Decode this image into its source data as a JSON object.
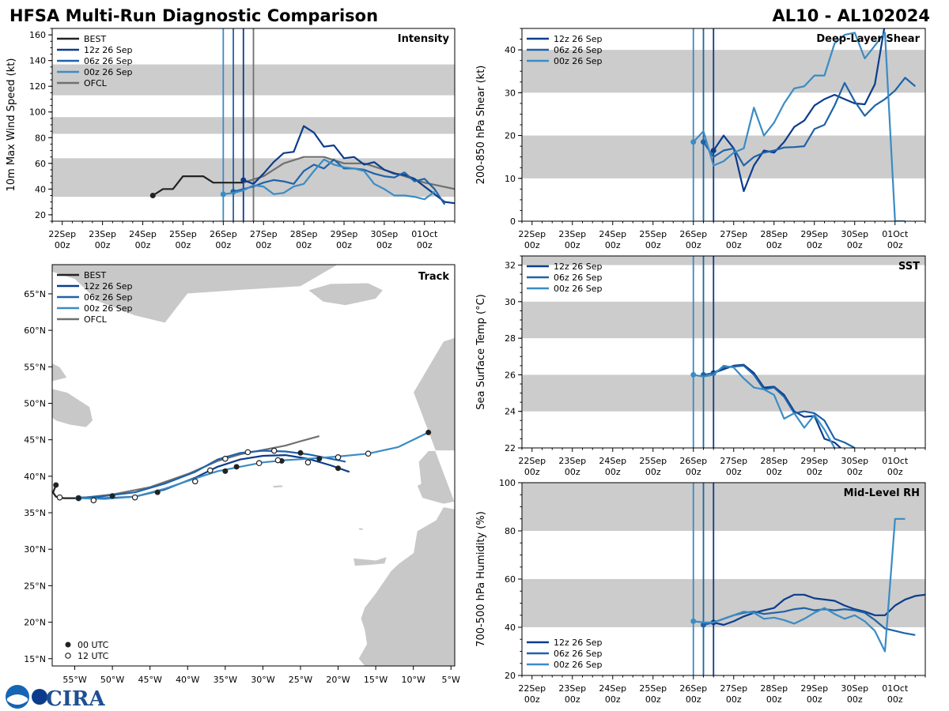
{
  "title_left": "HFSA Multi-Run Diagnostic Comparison",
  "title_right": "AL10 - AL102024",
  "logo": {
    "text": "CIRA",
    "icon": "noaa-logo"
  },
  "colors": {
    "BEST": "#222222",
    "12z 26 Sep": "#0b3c8c",
    "06z 26 Sep": "#1f63a8",
    "00z 26 Sep": "#3a8cc4",
    "OFCL": "#707070",
    "band": "#cccccc",
    "land": "#c8c8c8"
  },
  "time_axis": {
    "ticks": [
      0,
      1,
      2,
      3,
      4,
      5,
      6,
      7,
      8,
      9
    ],
    "labels": [
      "22Sep",
      "23Sep",
      "24Sep",
      "25Sep",
      "26Sep",
      "27Sep",
      "28Sep",
      "29Sep",
      "30Sep",
      "01Oct"
    ],
    "sublabel": "00z",
    "xlim": [
      -0.25,
      9.75
    ],
    "init_lines": [
      4.0,
      4.25,
      4.5
    ]
  },
  "chart_data": [
    {
      "id": "intensity",
      "type": "line",
      "title": "Intensity",
      "ylabel": "10m Max Wind Speed (kt)",
      "ylim": [
        15,
        165
      ],
      "yticks": [
        20,
        40,
        60,
        80,
        100,
        120,
        140,
        160
      ],
      "bands": [
        [
          34,
          64
        ],
        [
          83,
          96
        ],
        [
          113,
          137
        ]
      ],
      "vlines": [
        4.0,
        4.25,
        4.5,
        4.75
      ],
      "legend": [
        "BEST",
        "12z 26 Sep",
        "06z 26 Sep",
        "00z 26 Sep",
        "OFCL"
      ],
      "series": [
        {
          "name": "BEST",
          "x": [
            2.25,
            2.5,
            2.75,
            3.0,
            3.25,
            3.5,
            3.75,
            4.0,
            4.25,
            4.5
          ],
          "y": [
            35,
            40,
            40,
            50,
            50,
            50,
            45,
            45,
            45,
            45
          ]
        },
        {
          "name": "OFCL",
          "x": [
            4.5,
            5.0,
            5.5,
            6.0,
            6.5,
            7.0,
            7.5,
            8.0,
            8.5,
            9.0,
            9.75
          ],
          "y": [
            45,
            50,
            60,
            65,
            65,
            60,
            60,
            55,
            50,
            45,
            40
          ]
        },
        {
          "name": "12z 26 Sep",
          "x": [
            4.5,
            4.75,
            5.0,
            5.25,
            5.5,
            5.75,
            6.0,
            6.25,
            6.5,
            6.75,
            7.0,
            7.25,
            7.5,
            7.75,
            8.0,
            8.25,
            8.5,
            8.75,
            9.0,
            9.25,
            9.5,
            9.75
          ],
          "y": [
            47,
            44,
            52,
            61,
            68,
            69,
            89,
            84,
            73,
            74,
            64,
            65,
            59,
            61,
            55,
            52,
            51,
            48,
            42,
            36,
            30,
            29
          ]
        },
        {
          "name": "06z 26 Sep",
          "x": [
            4.25,
            4.5,
            4.75,
            5.0,
            5.25,
            5.5,
            5.75,
            6.0,
            6.25,
            6.5,
            6.75,
            7.0,
            7.25,
            7.5,
            7.75,
            8.0,
            8.25,
            8.5,
            8.75,
            9.0,
            9.25,
            9.5
          ],
          "y": [
            38,
            40,
            42,
            45,
            47,
            46,
            44,
            54,
            59,
            56,
            63,
            56,
            56,
            55,
            52,
            50,
            49,
            53,
            46,
            48,
            40,
            28
          ]
        },
        {
          "name": "00z 26 Sep",
          "x": [
            4.0,
            4.25,
            4.5,
            4.75,
            5.0,
            5.25,
            5.5,
            5.75,
            6.0,
            6.25,
            6.5,
            6.75,
            7.0,
            7.25,
            7.5,
            7.75,
            8.0,
            8.25,
            8.5,
            8.75,
            9.0,
            9.25
          ],
          "y": [
            36,
            37,
            39,
            43,
            42,
            36,
            37,
            42,
            44,
            54,
            63,
            59,
            57,
            56,
            54,
            44,
            40,
            35,
            35,
            34,
            32,
            38
          ]
        }
      ]
    },
    {
      "id": "shear",
      "type": "line",
      "title": "Deep-Layer Shear",
      "ylabel": "200-850 hPa Shear (kt)",
      "ylim": [
        0,
        45
      ],
      "yticks": [
        0,
        10,
        20,
        30,
        40
      ],
      "bands": [
        [
          10,
          20
        ],
        [
          30,
          40
        ]
      ],
      "vlines": [
        4.0,
        4.25,
        4.5
      ],
      "legend": [
        "12z 26 Sep",
        "06z 26 Sep",
        "00z 26 Sep"
      ],
      "series": [
        {
          "name": "12z 26 Sep",
          "x": [
            4.5,
            4.75,
            5.0,
            5.25,
            5.5,
            5.75,
            6.0,
            6.25,
            6.5,
            6.75,
            7.0,
            7.25,
            7.5,
            7.75,
            8.0,
            8.25,
            8.5,
            8.75
          ],
          "y": [
            16.5,
            20,
            17,
            7,
            13,
            16.5,
            16,
            18.5,
            22,
            23.5,
            27,
            28.5,
            29.5,
            28.5,
            27.5,
            27.3,
            32,
            46
          ]
        },
        {
          "name": "06z 26 Sep",
          "x": [
            4.25,
            4.5,
            4.75,
            5.0,
            5.25,
            5.5,
            5.75,
            6.0,
            6.25,
            6.5,
            6.75,
            7.0,
            7.25,
            7.5,
            7.75,
            8.0,
            8.25,
            8.5,
            8.75,
            9.0,
            9.25,
            9.5
          ],
          "y": [
            18.5,
            15,
            16.5,
            17,
            13,
            15,
            16,
            16.5,
            17.2,
            17.3,
            17.5,
            21.5,
            22.5,
            27,
            32.3,
            28,
            24.6,
            27,
            28.5,
            30.5,
            33.5,
            31.5
          ]
        },
        {
          "name": "00z 26 Sep",
          "x": [
            4.0,
            4.25,
            4.5,
            4.75,
            5.0,
            5.25,
            5.5,
            5.75,
            6.0,
            6.25,
            6.5,
            6.75,
            7.0,
            7.25,
            7.5,
            7.75,
            8.0,
            8.25,
            8.5,
            8.75,
            9.0,
            9.25
          ],
          "y": [
            18.5,
            21,
            13,
            14,
            16,
            17,
            26.5,
            20,
            23,
            27.5,
            31,
            31.5,
            34,
            34,
            41.5,
            43.5,
            44,
            38,
            41,
            44,
            0,
            0
          ]
        }
      ]
    },
    {
      "id": "sst",
      "type": "line",
      "title": "SST",
      "ylabel": "Sea Surface Temp (°C)",
      "ylim": [
        22,
        32.5
      ],
      "yticks": [
        22,
        24,
        26,
        28,
        30,
        32
      ],
      "bands": [
        [
          24,
          26
        ],
        [
          28,
          30
        ],
        [
          32,
          33
        ]
      ],
      "vlines": [
        4.0,
        4.25,
        4.5
      ],
      "legend": [
        "12z 26 Sep",
        "06z 26 Sep",
        "00z 26 Sep"
      ],
      "series": [
        {
          "name": "12z 26 Sep",
          "x": [
            4.5,
            4.75,
            5.0,
            5.25,
            5.5,
            5.75,
            6.0,
            6.25,
            6.5,
            6.75,
            7.0,
            7.25,
            7.5,
            7.75
          ],
          "y": [
            26.1,
            26.3,
            26.5,
            26.55,
            26.1,
            25.3,
            25.35,
            24.9,
            24.0,
            23.7,
            23.75,
            22.5,
            22.3,
            21.8
          ]
        },
        {
          "name": "06z 26 Sep",
          "x": [
            4.25,
            4.5,
            4.75,
            5.0,
            5.25,
            5.5,
            5.75,
            6.0,
            6.25,
            6.5,
            6.75,
            7.0,
            7.25,
            7.5,
            7.75,
            8.0
          ],
          "y": [
            26.0,
            26.1,
            26.4,
            26.45,
            26.5,
            26.0,
            25.2,
            25.3,
            24.8,
            23.9,
            24.0,
            23.9,
            23.5,
            22.5,
            22.3,
            22.0
          ]
        },
        {
          "name": "00z 26 Sep",
          "x": [
            4.0,
            4.25,
            4.5,
            4.75,
            5.0,
            5.25,
            5.5,
            5.75,
            6.0,
            6.25,
            6.5,
            6.75,
            7.0,
            7.25,
            7.5
          ],
          "y": [
            26.0,
            25.9,
            26.0,
            26.5,
            26.4,
            25.8,
            25.3,
            25.2,
            24.9,
            23.6,
            23.9,
            23.1,
            23.8,
            23.0,
            22.0
          ]
        }
      ]
    },
    {
      "id": "rh",
      "type": "line",
      "title": "Mid-Level RH",
      "ylabel": "700-500 hPa Humidity (%)",
      "ylim": [
        20,
        100
      ],
      "yticks": [
        20,
        40,
        60,
        80,
        100
      ],
      "bands": [
        [
          40,
          60
        ],
        [
          80,
          100
        ]
      ],
      "vlines": [
        4.0,
        4.25,
        4.5
      ],
      "legend": [
        "12z 26 Sep",
        "06z 26 Sep",
        "00z 26 Sep"
      ],
      "series": [
        {
          "name": "12z 26 Sep",
          "x": [
            4.5,
            4.75,
            5.0,
            5.25,
            5.5,
            5.75,
            6.0,
            6.25,
            6.5,
            6.75,
            7.0,
            7.25,
            7.5,
            7.75,
            8.0,
            8.25,
            8.5,
            8.75,
            9.0,
            9.25,
            9.5,
            9.75
          ],
          "y": [
            42,
            41,
            42.5,
            44.5,
            46,
            47,
            48,
            51.5,
            53.5,
            53.5,
            52,
            51.5,
            51,
            49,
            47.5,
            46.5,
            45,
            45,
            49,
            51.5,
            53,
            53.5
          ]
        },
        {
          "name": "06z 26 Sep",
          "x": [
            4.25,
            4.5,
            4.75,
            5.0,
            5.25,
            5.5,
            5.75,
            6.0,
            6.25,
            6.5,
            6.75,
            7.0,
            7.25,
            7.5,
            7.75,
            8.0,
            8.25,
            8.5,
            8.75,
            9.0,
            9.25,
            9.5
          ],
          "y": [
            41,
            42,
            43.5,
            45,
            46,
            46.5,
            45.5,
            46,
            46.5,
            47.5,
            48,
            47,
            47.5,
            47,
            47.5,
            47,
            46,
            43,
            39.5,
            38.5,
            37.5,
            36.8
          ]
        },
        {
          "name": "00z 26 Sep",
          "x": [
            4.0,
            4.25,
            4.5,
            4.75,
            5.0,
            5.25,
            5.5,
            5.75,
            6.0,
            6.25,
            6.5,
            6.75,
            7.0,
            7.25,
            7.5,
            7.75,
            8.0,
            8.25,
            8.5,
            8.75,
            9.0,
            9.25
          ],
          "y": [
            42.5,
            42,
            42,
            43.5,
            45,
            46.5,
            46,
            43.5,
            44,
            43,
            41.5,
            43.5,
            46,
            48,
            45.5,
            43.5,
            45,
            42.5,
            38.5,
            30,
            85,
            85
          ]
        }
      ]
    },
    {
      "id": "track",
      "type": "scatter",
      "title": "Track",
      "xlim": [
        -58,
        -4.5
      ],
      "ylim": [
        14,
        69
      ],
      "xticks": [
        -55,
        -50,
        -45,
        -40,
        -35,
        -30,
        -25,
        -20,
        -15,
        -10,
        -5
      ],
      "xticklabels": [
        "55°W",
        "50°W",
        "45°W",
        "40°W",
        "35°W",
        "30°W",
        "25°W",
        "20°W",
        "15°W",
        "10°W",
        "5°W"
      ],
      "yticks": [
        15,
        20,
        25,
        30,
        35,
        40,
        45,
        50,
        55,
        60,
        65
      ],
      "yticklabels": [
        "15°N",
        "20°N",
        "25°N",
        "30°N",
        "35°N",
        "40°N",
        "45°N",
        "50°N",
        "55°N",
        "60°N",
        "65°N"
      ],
      "legend": [
        "BEST",
        "12z 26 Sep",
        "06z 26 Sep",
        "00z 26 Sep",
        "OFCL"
      ],
      "marker_legend": [
        "00 UTC",
        "12 UTC"
      ],
      "series": [
        {
          "name": "BEST",
          "lon": [
            -57.5,
            -57.8,
            -57.9,
            -57.5,
            -56.5,
            -55.5,
            -54.5
          ],
          "lat": [
            38.8,
            38.0,
            37.8,
            37.2,
            37.0,
            37.0,
            37.0
          ]
        },
        {
          "name": "OFCL",
          "lon": [
            -54.5,
            -50,
            -45,
            -40,
            -36,
            -33,
            -30,
            -27,
            -25,
            -22.5
          ],
          "lat": [
            37.0,
            37.5,
            38.5,
            40.3,
            42.1,
            43.0,
            43.6,
            44.2,
            44.8,
            45.5
          ]
        },
        {
          "name": "12z 26 Sep",
          "lon": [
            -54.5,
            -51,
            -47,
            -43,
            -39,
            -36,
            -33,
            -30,
            -27,
            -24,
            -21,
            -18.5
          ],
          "lat": [
            37.1,
            37.0,
            37.2,
            38.2,
            39.8,
            41.3,
            42.3,
            42.8,
            42.9,
            42.4,
            41.5,
            40.6
          ]
        },
        {
          "name": "06z 26 Sep",
          "lon": [
            -54.5,
            -51,
            -47,
            -43,
            -39,
            -36,
            -33,
            -30,
            -27,
            -24,
            -21,
            -19
          ],
          "lat": [
            37.0,
            37.3,
            37.8,
            39.0,
            40.6,
            42.3,
            43.2,
            43.5,
            43.4,
            43.0,
            42.4,
            42.0
          ]
        },
        {
          "name": "00z 26 Sep",
          "lon": [
            -54.5,
            -51,
            -47,
            -43,
            -39,
            -36,
            -33,
            -30,
            -27,
            -24,
            -20,
            -16,
            -12,
            -8
          ],
          "lat": [
            37.0,
            36.9,
            37.2,
            38.3,
            39.7,
            40.7,
            41.3,
            41.9,
            42.2,
            42.4,
            42.7,
            43.1,
            44.0,
            46.0
          ]
        }
      ],
      "points_00utc": [
        [
          -57.5,
          38.8
        ],
        [
          -54.5,
          37.0
        ],
        [
          -50,
          37.3
        ],
        [
          -44,
          37.8
        ],
        [
          -35,
          40.7
        ],
        [
          -33.5,
          41.3
        ],
        [
          -27.5,
          42.1
        ],
        [
          -25,
          43.2
        ],
        [
          -22.5,
          42.4
        ],
        [
          -20,
          41.1
        ],
        [
          -8,
          46.0
        ]
      ],
      "points_12utc": [
        [
          -57,
          37.1
        ],
        [
          -52.5,
          36.7
        ],
        [
          -47,
          37.1
        ],
        [
          -39,
          39.3
        ],
        [
          -37,
          40.8
        ],
        [
          -35,
          42.4
        ],
        [
          -32,
          43.3
        ],
        [
          -30.5,
          41.8
        ],
        [
          -28,
          42.2
        ],
        [
          -28.5,
          43.5
        ],
        [
          -24,
          41.9
        ],
        [
          -20,
          42.6
        ],
        [
          -16,
          43.1
        ]
      ]
    }
  ]
}
